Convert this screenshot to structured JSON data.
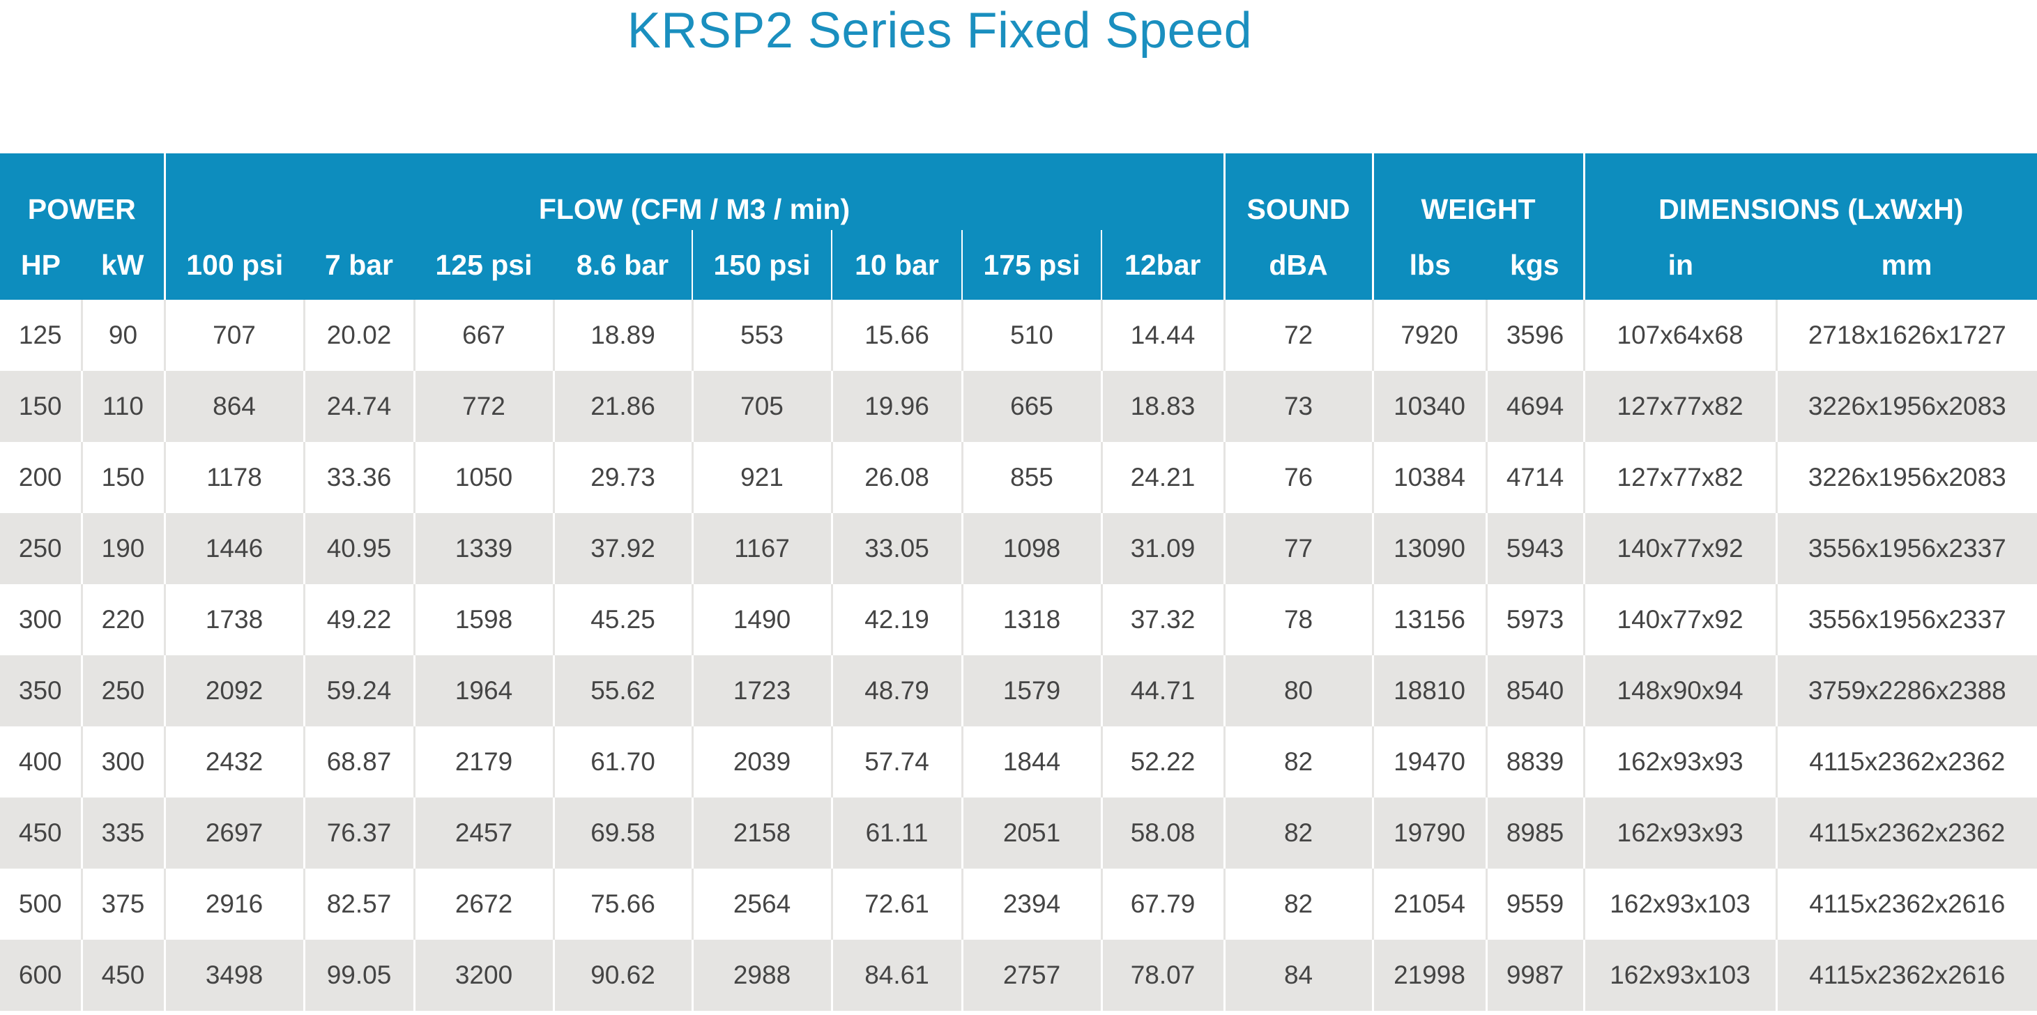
{
  "title": "KRSP2 Series Fixed Speed",
  "table": {
    "groups": {
      "power": "POWER",
      "flow": "FLOW (CFM / M3 / min)",
      "sound": "SOUND",
      "weight": "WEIGHT",
      "dimensions": "DIMENSIONS (LxWxH)"
    },
    "units": [
      "HP",
      "kW",
      "100 psi",
      "7 bar",
      "125 psi",
      "8.6 bar",
      "150 psi",
      "10 bar",
      "175 psi",
      "12bar",
      "dBA",
      "lbs",
      "kgs",
      "in",
      "mm"
    ],
    "rows": [
      [
        "125",
        "90",
        "707",
        "20.02",
        "667",
        "18.89",
        "553",
        "15.66",
        "510",
        "14.44",
        "72",
        "7920",
        "3596",
        "107x64x68",
        "2718x1626x1727"
      ],
      [
        "150",
        "110",
        "864",
        "24.74",
        "772",
        "21.86",
        "705",
        "19.96",
        "665",
        "18.83",
        "73",
        "10340",
        "4694",
        "127x77x82",
        "3226x1956x2083"
      ],
      [
        "200",
        "150",
        "1178",
        "33.36",
        "1050",
        "29.73",
        "921",
        "26.08",
        "855",
        "24.21",
        "76",
        "10384",
        "4714",
        "127x77x82",
        "3226x1956x2083"
      ],
      [
        "250",
        "190",
        "1446",
        "40.95",
        "1339",
        "37.92",
        "1167",
        "33.05",
        "1098",
        "31.09",
        "77",
        "13090",
        "5943",
        "140x77x92",
        "3556x1956x2337"
      ],
      [
        "300",
        "220",
        "1738",
        "49.22",
        "1598",
        "45.25",
        "1490",
        "42.19",
        "1318",
        "37.32",
        "78",
        "13156",
        "5973",
        "140x77x92",
        "3556x1956x2337"
      ],
      [
        "350",
        "250",
        "2092",
        "59.24",
        "1964",
        "55.62",
        "1723",
        "48.79",
        "1579",
        "44.71",
        "80",
        "18810",
        "8540",
        "148x90x94",
        "3759x2286x2388"
      ],
      [
        "400",
        "300",
        "2432",
        "68.87",
        "2179",
        "61.70",
        "2039",
        "57.74",
        "1844",
        "52.22",
        "82",
        "19470",
        "8839",
        "162x93x93",
        "4115x2362x2362"
      ],
      [
        "450",
        "335",
        "2697",
        "76.37",
        "2457",
        "69.58",
        "2158",
        "61.11",
        "2051",
        "58.08",
        "82",
        "19790",
        "8985",
        "162x93x93",
        "4115x2362x2362"
      ],
      [
        "500",
        "375",
        "2916",
        "82.57",
        "2672",
        "75.66",
        "2564",
        "72.61",
        "2394",
        "67.79",
        "82",
        "21054",
        "9559",
        "162x93x103",
        "4115x2362x2616"
      ],
      [
        "600",
        "450",
        "3498",
        "99.05",
        "3200",
        "90.62",
        "2988",
        "84.61",
        "2757",
        "78.07",
        "84",
        "21998",
        "9987",
        "162x93x103",
        "4115x2362x2616"
      ]
    ]
  },
  "colors": {
    "title": "#1a8fbf",
    "header_bg": "#0d8dbe",
    "header_text": "#ffffff",
    "row_alt_bg": "#e5e4e2",
    "body_text": "#444444"
  }
}
